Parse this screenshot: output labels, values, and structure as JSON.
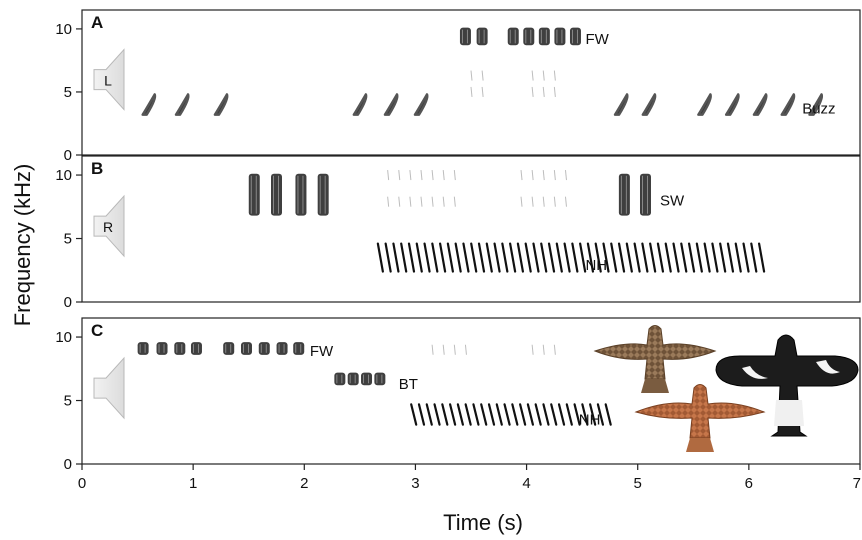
{
  "chart_data": {
    "type": "spectrogram",
    "xlabel": "Time (s)",
    "ylabel": "Frequency (kHz)",
    "xlim": [
      0,
      7
    ],
    "x_ticks": [
      "0",
      "1",
      "2",
      "3",
      "4",
      "5",
      "6",
      "7"
    ],
    "panels": [
      {
        "label": "A",
        "speaker": "L",
        "ylim": [
          0,
          11.5
        ],
        "y_ticks": [
          "0",
          "5",
          "10"
        ],
        "calls": [
          {
            "name": "FW",
            "style": "blocks",
            "times": [
              3.45,
              3.6,
              3.88,
              4.02,
              4.16,
              4.3,
              4.44
            ],
            "freq": [
              8.7,
              10.1
            ],
            "label_pos": [
              4.53,
              9.2
            ],
            "harmonics": {
              "rows": [
                6.3,
                5.0
              ],
              "times": [
                3.5,
                3.6,
                4.05,
                4.15,
                4.25
              ]
            }
          },
          {
            "name": "Buzz",
            "style": "slants",
            "times": [
              0.6,
              0.9,
              1.25,
              2.5,
              2.78,
              3.05,
              4.85,
              5.1,
              5.6,
              5.85,
              6.1,
              6.35,
              6.6
            ],
            "freq": [
              3.2,
              4.8
            ],
            "label_pos": [
              6.48,
              3.7
            ]
          }
        ]
      },
      {
        "label": "B",
        "speaker": "R",
        "ylim": [
          0,
          11.5
        ],
        "y_ticks": [
          "0",
          "5",
          "10"
        ],
        "calls": [
          {
            "name": "SW",
            "style": "blocks",
            "times": [
              1.55,
              1.75,
              1.97,
              2.17,
              4.88,
              5.07
            ],
            "freq": [
              6.8,
              10.1
            ],
            "label_pos": [
              5.2,
              8.0
            ]
          },
          {
            "name": "NH",
            "style": "needles",
            "times": [
              2.68,
              2.75,
              2.82,
              2.89,
              2.96,
              3.03,
              3.1,
              3.17,
              3.24,
              3.31,
              3.38,
              3.45,
              3.52,
              3.59,
              3.66,
              3.73,
              3.8,
              3.87,
              3.94,
              4.01,
              4.08,
              4.15,
              4.22,
              4.29,
              4.36,
              4.43,
              4.5,
              4.57,
              4.64,
              4.71,
              4.78,
              4.85,
              4.92,
              4.99,
              5.06,
              5.13,
              5.2,
              5.27,
              5.34,
              5.41,
              5.48,
              5.55,
              5.62,
              5.69,
              5.76,
              5.83,
              5.9,
              5.97,
              6.04,
              6.11
            ],
            "freq": [
              2.4,
              4.6
            ],
            "label_pos": [
              4.53,
              2.9
            ],
            "harmonics": {
              "rows": [
                10.0,
                7.9
              ],
              "times": [
                2.75,
                2.85,
                2.95,
                3.05,
                3.15,
                3.25,
                3.35,
                3.95,
                4.05,
                4.15,
                4.25,
                4.35
              ]
            }
          }
        ]
      },
      {
        "label": "C",
        "speaker": "",
        "ylim": [
          0,
          11.5
        ],
        "y_ticks": [
          "0",
          "5",
          "10"
        ],
        "calls": [
          {
            "name": "FW",
            "style": "blocks",
            "times": [
              0.55,
              0.72,
              0.88,
              1.03,
              1.32,
              1.48,
              1.64,
              1.8,
              1.95
            ],
            "freq": [
              8.6,
              9.6
            ],
            "label_pos": [
              2.05,
              8.9
            ]
          },
          {
            "name": "BT",
            "style": "blocks",
            "times": [
              2.32,
              2.44,
              2.56,
              2.68
            ],
            "freq": [
              6.2,
              7.2
            ],
            "label_pos": [
              2.85,
              6.3
            ]
          },
          {
            "name": "NH",
            "style": "needles",
            "times": [
              2.98,
              3.05,
              3.12,
              3.19,
              3.26,
              3.33,
              3.4,
              3.47,
              3.54,
              3.61,
              3.68,
              3.75,
              3.82,
              3.89,
              3.96,
              4.03,
              4.1,
              4.17,
              4.24,
              4.31,
              4.38,
              4.45,
              4.52,
              4.59,
              4.66,
              4.73
            ],
            "freq": [
              3.1,
              4.7
            ],
            "label_pos": [
              4.47,
              3.5
            ],
            "harmonics": {
              "rows": [
                9.0
              ],
              "times": [
                3.15,
                3.25,
                3.35,
                3.45,
                4.05,
                4.15,
                4.25
              ]
            }
          }
        ]
      }
    ]
  },
  "decoys": [
    "hawk-brown",
    "hawk-orange",
    "black-white-bird"
  ]
}
